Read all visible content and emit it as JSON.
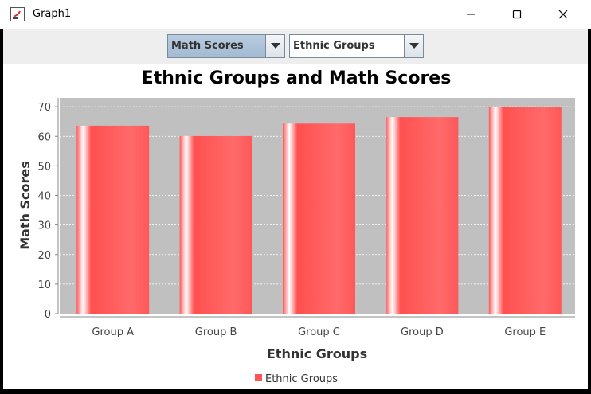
{
  "window": {
    "title": "Graph1"
  },
  "toolbar": {
    "y_selector": {
      "selected": "Math Scores"
    },
    "x_selector": {
      "selected": "Ethnic Groups"
    }
  },
  "colors": {
    "bar": "#ff5555",
    "plot_background": "#c0c0c0"
  },
  "chart_data": {
    "type": "bar",
    "title": "Ethnic Groups and Math Scores",
    "xlabel": "Ethnic Groups",
    "ylabel": "Math Scores",
    "categories": [
      "Group A",
      "Group B",
      "Group C",
      "Group D",
      "Group E"
    ],
    "series": [
      {
        "name": "Ethnic Groups",
        "values": [
          63.6,
          60.1,
          64.3,
          66.5,
          69.9
        ]
      }
    ],
    "ylim": [
      0,
      73
    ],
    "yticks": [
      0,
      10,
      20,
      30,
      40,
      50,
      60,
      70
    ],
    "grid": true,
    "legend": "bottom-center"
  }
}
